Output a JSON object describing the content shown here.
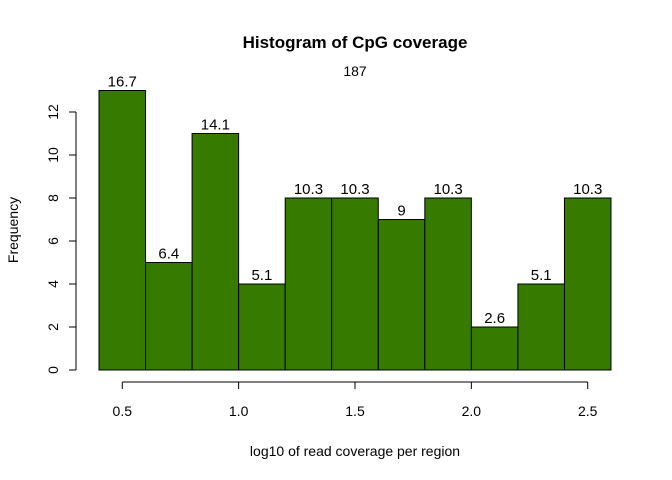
{
  "chart_data": {
    "type": "bar",
    "title": "Histogram of CpG coverage",
    "subtitle": "187",
    "xlabel": "log10 of read coverage per region",
    "ylabel": "Frequency",
    "bins": [
      {
        "start": 0.4,
        "end": 0.6,
        "count": 13,
        "label": "16.7"
      },
      {
        "start": 0.6,
        "end": 0.8,
        "count": 5,
        "label": "6.4"
      },
      {
        "start": 0.8,
        "end": 1.0,
        "count": 11,
        "label": "14.1"
      },
      {
        "start": 1.0,
        "end": 1.2,
        "count": 4,
        "label": "5.1"
      },
      {
        "start": 1.2,
        "end": 1.4,
        "count": 8,
        "label": "10.3"
      },
      {
        "start": 1.4,
        "end": 1.6,
        "count": 8,
        "label": "10.3"
      },
      {
        "start": 1.6,
        "end": 1.8,
        "count": 7,
        "label": "9"
      },
      {
        "start": 1.8,
        "end": 2.0,
        "count": 8,
        "label": "10.3"
      },
      {
        "start": 2.0,
        "end": 2.2,
        "count": 2,
        "label": "2.6"
      },
      {
        "start": 2.2,
        "end": 2.4,
        "count": 4,
        "label": "5.1"
      },
      {
        "start": 2.4,
        "end": 2.6,
        "count": 8,
        "label": "10.3"
      }
    ],
    "xlim": [
      0.4,
      2.6
    ],
    "ylim": [
      0,
      13
    ],
    "xticks": [
      0.5,
      1.0,
      1.5,
      2.0,
      2.5
    ],
    "xtick_labels": [
      "0.5",
      "1.0",
      "1.5",
      "2.0",
      "2.5"
    ],
    "yticks": [
      0,
      2,
      4,
      6,
      8,
      10,
      12
    ],
    "ytick_labels": [
      "0",
      "2",
      "4",
      "6",
      "8",
      "10",
      "12"
    ],
    "bar_color": "#367a00",
    "bar_border_color": "#000000",
    "grid": false,
    "legend": "none"
  }
}
